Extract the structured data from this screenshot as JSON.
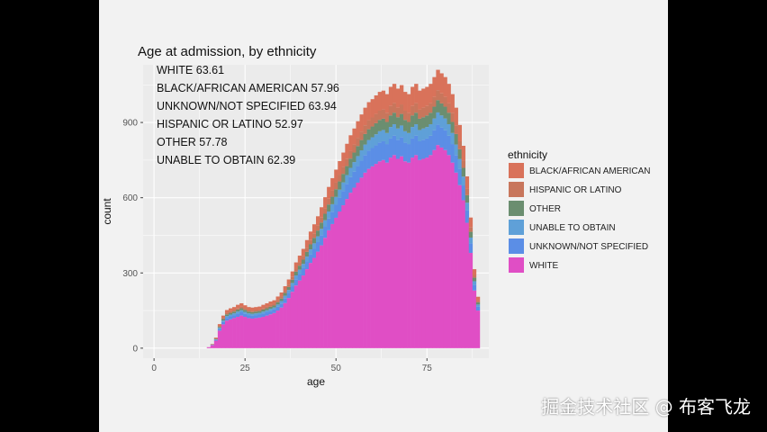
{
  "watermark": "掘金技术社区 @ 布客飞龙",
  "chart_data": {
    "type": "bar",
    "stacked": true,
    "title": "Age at admission, by ethnicity",
    "xlabel": "age",
    "ylabel": "count",
    "xlim": [
      -3,
      92
    ],
    "ylim": [
      -40,
      1130
    ],
    "x_ticks": [
      0,
      25,
      50,
      75
    ],
    "y_ticks": [
      0,
      300,
      600,
      900
    ],
    "grid": true,
    "legend_title": "ethnicity",
    "legend_position": "right",
    "annotations": [
      "WHITE 63.61",
      "BLACK/AFRICAN AMERICAN 57.96",
      "UNKNOWN/NOT SPECIFIED 63.94",
      "HISPANIC OR LATINO 52.97",
      "OTHER 57.78",
      "UNABLE TO OBTAIN 62.39"
    ],
    "x": [
      15,
      16,
      17,
      18,
      19,
      20,
      21,
      22,
      23,
      24,
      25,
      26,
      27,
      28,
      29,
      30,
      31,
      32,
      33,
      34,
      35,
      36,
      37,
      38,
      39,
      40,
      41,
      42,
      43,
      44,
      45,
      46,
      47,
      48,
      49,
      50,
      51,
      52,
      53,
      54,
      55,
      56,
      57,
      58,
      59,
      60,
      61,
      62,
      63,
      64,
      65,
      66,
      67,
      68,
      69,
      70,
      71,
      72,
      73,
      74,
      75,
      76,
      77,
      78,
      79,
      80,
      81,
      82,
      83,
      84,
      85,
      86,
      87,
      88,
      89
    ],
    "series": [
      {
        "name": "WHITE",
        "color": "#e04ec5",
        "values": [
          4,
          12,
          30,
          70,
          95,
          110,
          115,
          120,
          125,
          130,
          125,
          120,
          118,
          120,
          122,
          125,
          130,
          135,
          140,
          150,
          162,
          180,
          200,
          225,
          250,
          270,
          290,
          315,
          340,
          360,
          385,
          410,
          440,
          470,
          495,
          520,
          545,
          570,
          595,
          620,
          640,
          660,
          680,
          700,
          715,
          725,
          735,
          745,
          750,
          740,
          760,
          770,
          755,
          765,
          745,
          740,
          760,
          770,
          750,
          755,
          760,
          770,
          790,
          810,
          800,
          790,
          770,
          740,
          700,
          650,
          590,
          500,
          380,
          230,
          150
        ]
      },
      {
        "name": "UNKNOWN/NOT SPECIFIED",
        "color": "#5b8ee6",
        "values": [
          0,
          1,
          3,
          7,
          9,
          11,
          12,
          12,
          13,
          13,
          12,
          12,
          12,
          12,
          12,
          13,
          13,
          14,
          14,
          15,
          16,
          18,
          20,
          22,
          25,
          27,
          29,
          31,
          34,
          36,
          38,
          41,
          44,
          47,
          49,
          52,
          54,
          57,
          59,
          62,
          64,
          66,
          68,
          70,
          72,
          73,
          74,
          75,
          75,
          74,
          76,
          77,
          76,
          77,
          75,
          74,
          76,
          77,
          75,
          76,
          76,
          77,
          79,
          81,
          80,
          79,
          77,
          74,
          70,
          65,
          59,
          50,
          38,
          23,
          15
        ]
      },
      {
        "name": "UNABLE TO OBTAIN",
        "color": "#5fa0d8",
        "values": [
          0,
          1,
          2,
          4,
          6,
          7,
          7,
          7,
          8,
          8,
          8,
          7,
          7,
          7,
          7,
          8,
          8,
          8,
          8,
          9,
          10,
          11,
          12,
          13,
          15,
          16,
          17,
          19,
          20,
          22,
          23,
          25,
          26,
          28,
          30,
          31,
          33,
          34,
          36,
          37,
          38,
          40,
          41,
          42,
          43,
          43,
          44,
          45,
          45,
          44,
          46,
          46,
          45,
          46,
          45,
          44,
          46,
          46,
          45,
          45,
          46,
          46,
          47,
          49,
          48,
          47,
          46,
          44,
          42,
          39,
          35,
          30,
          23,
          14,
          9
        ]
      },
      {
        "name": "OTHER",
        "color": "#6b8e70",
        "values": [
          0,
          1,
          2,
          4,
          6,
          7,
          7,
          7,
          8,
          8,
          8,
          7,
          7,
          7,
          7,
          8,
          8,
          8,
          8,
          9,
          10,
          11,
          12,
          13,
          15,
          16,
          17,
          19,
          20,
          22,
          23,
          25,
          26,
          28,
          30,
          31,
          33,
          34,
          36,
          37,
          38,
          40,
          41,
          42,
          43,
          43,
          44,
          45,
          45,
          44,
          46,
          46,
          45,
          46,
          45,
          44,
          46,
          46,
          45,
          45,
          46,
          46,
          47,
          49,
          48,
          47,
          46,
          44,
          42,
          39,
          35,
          30,
          23,
          14,
          9
        ]
      },
      {
        "name": "HISPANIC OR LATINO",
        "color": "#c8765c",
        "values": [
          0,
          1,
          2,
          4,
          5,
          6,
          6,
          6,
          6,
          7,
          6,
          6,
          6,
          6,
          6,
          6,
          7,
          7,
          7,
          8,
          8,
          9,
          10,
          11,
          12,
          13,
          14,
          16,
          17,
          18,
          19,
          20,
          22,
          23,
          25,
          26,
          27,
          28,
          30,
          31,
          32,
          33,
          34,
          35,
          36,
          36,
          37,
          37,
          37,
          37,
          38,
          38,
          38,
          38,
          37,
          37,
          38,
          38,
          37,
          38,
          38,
          38,
          39,
          40,
          40,
          39,
          38,
          37,
          35,
          32,
          29,
          25,
          19,
          11,
          7
        ]
      },
      {
        "name": "BLACK/AFRICAN AMERICAN",
        "color": "#d9725a",
        "values": [
          0,
          1,
          3,
          7,
          9,
          11,
          12,
          12,
          13,
          13,
          12,
          12,
          12,
          12,
          12,
          13,
          13,
          14,
          14,
          15,
          16,
          18,
          20,
          22,
          25,
          27,
          29,
          31,
          34,
          36,
          38,
          41,
          44,
          47,
          49,
          52,
          54,
          57,
          59,
          62,
          64,
          66,
          68,
          70,
          72,
          73,
          74,
          75,
          75,
          74,
          76,
          77,
          76,
          77,
          75,
          74,
          76,
          77,
          75,
          76,
          76,
          77,
          79,
          81,
          80,
          79,
          77,
          74,
          70,
          65,
          59,
          50,
          38,
          23,
          15
        ]
      }
    ],
    "legend_order": [
      "BLACK/AFRICAN AMERICAN",
      "HISPANIC OR LATINO",
      "OTHER",
      "UNABLE TO OBTAIN",
      "UNKNOWN/NOT SPECIFIED",
      "WHITE"
    ]
  }
}
